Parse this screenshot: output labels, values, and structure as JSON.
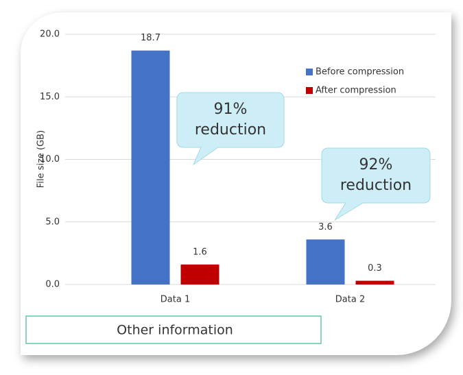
{
  "chart_data": {
    "type": "bar",
    "y_label": "File size (GB)",
    "categories": [
      "Data 1",
      "Data 2"
    ],
    "series": [
      {
        "name": "Before compression",
        "color": "#4472c4",
        "values": [
          18.7,
          3.6
        ]
      },
      {
        "name": "After compression",
        "color": "#c00000",
        "values": [
          1.6,
          0.3
        ]
      }
    ],
    "ylim": [
      0,
      20
    ],
    "yticks": [
      {
        "value": 0,
        "label": "0.0"
      },
      {
        "value": 5,
        "label": "5.0"
      },
      {
        "value": 10,
        "label": "10.0"
      },
      {
        "value": 15,
        "label": "15.0"
      },
      {
        "value": 20,
        "label": "20.0"
      }
    ],
    "grid": true,
    "legend": "upper right",
    "annotations": [
      {
        "lines": [
          "91%",
          "reduction"
        ]
      },
      {
        "lines": [
          "92%",
          "reduction"
        ]
      }
    ],
    "footer": "Other information"
  }
}
